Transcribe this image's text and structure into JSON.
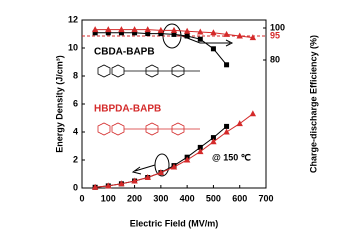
{
  "chart_data": {
    "type": "line",
    "x_label": "Electric Field (MV/m)",
    "y_label": "Energy Density (J/cm³)",
    "y2_label": "Charge-discharge Efficiency (%)",
    "xlim": [
      0,
      700
    ],
    "xticks": [
      0,
      100,
      200,
      300,
      400,
      500,
      600,
      700
    ],
    "ylim": [
      0,
      12
    ],
    "yticks": [
      0,
      2,
      4,
      6,
      8,
      10,
      12
    ],
    "y2lim": [
      0,
      105
    ],
    "y2ticks": [
      80,
      100
    ],
    "reference_line": {
      "value": 95,
      "color": "#d42a2a",
      "axis": "y2"
    },
    "annotations": [
      {
        "text": "CBDA-BAPB",
        "color": "#000000"
      },
      {
        "text": "HBPDA-BAPB",
        "color": "#d42a2a"
      },
      {
        "text": "@ 150 ℃",
        "color": "#000000"
      }
    ],
    "series": [
      {
        "color": "#000000",
        "marker": "square",
        "axis": "y",
        "x": [
          50,
          100,
          150,
          200,
          250,
          300,
          350,
          400,
          450,
          500,
          550
        ],
        "values": [
          0.05,
          0.15,
          0.3,
          0.5,
          0.75,
          1.1,
          1.6,
          2.2,
          2.9,
          3.6,
          4.4
        ]
      },
      {
        "color": "#d42a2a",
        "marker": "triangle",
        "axis": "y",
        "x": [
          50,
          100,
          150,
          200,
          250,
          300,
          350,
          400,
          450,
          500,
          550,
          600,
          650
        ],
        "values": [
          0.05,
          0.15,
          0.3,
          0.5,
          0.75,
          1.1,
          1.5,
          2.0,
          2.6,
          3.3,
          4.0,
          4.6,
          5.3
        ]
      },
      {
        "color": "#000000",
        "marker": "square",
        "axis": "y2",
        "x": [
          50,
          100,
          150,
          200,
          250,
          300,
          350,
          400,
          450,
          500,
          550
        ],
        "values": [
          97,
          97,
          97,
          97,
          96.5,
          96.5,
          96,
          95,
          93,
          87,
          77
        ]
      },
      {
        "color": "#d42a2a",
        "marker": "triangle",
        "axis": "y2",
        "x": [
          50,
          100,
          150,
          200,
          250,
          300,
          350,
          400,
          450,
          500,
          550,
          600,
          650
        ],
        "values": [
          99,
          99,
          99,
          99,
          99,
          98.5,
          98.5,
          98,
          97.5,
          97,
          96,
          95,
          94
        ]
      }
    ]
  }
}
